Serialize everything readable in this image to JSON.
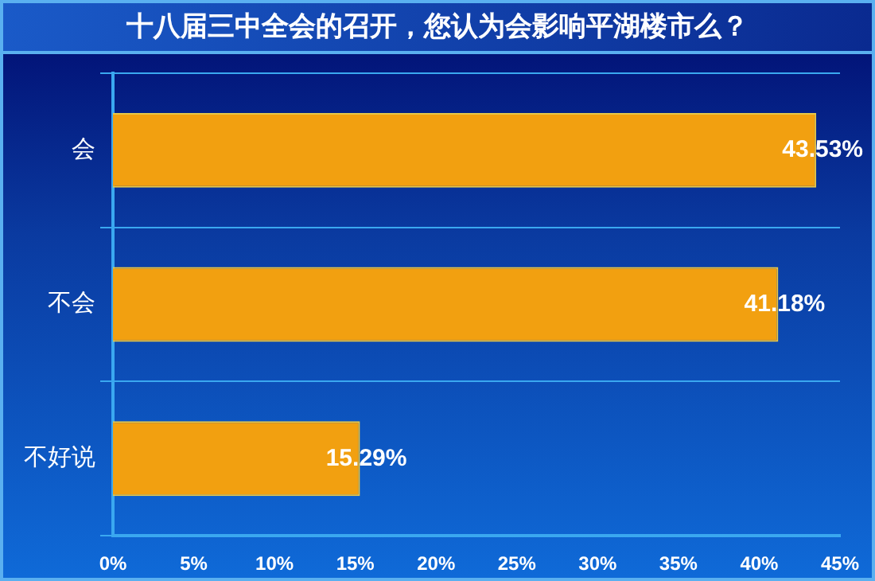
{
  "chart_data": {
    "type": "bar",
    "orientation": "horizontal",
    "title": "十八届三中全会的召开，您认为会影响平湖楼市么？",
    "categories": [
      "会",
      "不会",
      "不好说"
    ],
    "values": [
      43.53,
      41.18,
      15.29
    ],
    "value_labels": [
      "43.53%",
      "41.18%",
      "15.29%"
    ],
    "color": "#f2a010",
    "xlim": [
      0,
      45
    ],
    "xticks": [
      {
        "value": 0,
        "label": "0%"
      },
      {
        "value": 5,
        "label": "5%"
      },
      {
        "value": 10,
        "label": "10%"
      },
      {
        "value": 15,
        "label": "15%"
      },
      {
        "value": 20,
        "label": "20%"
      },
      {
        "value": 25,
        "label": "25%"
      },
      {
        "value": 30,
        "label": "30%"
      },
      {
        "value": 35,
        "label": "35%"
      },
      {
        "value": 40,
        "label": "40%"
      },
      {
        "value": 45,
        "label": "45%"
      }
    ],
    "grid": "y",
    "legend": false
  }
}
